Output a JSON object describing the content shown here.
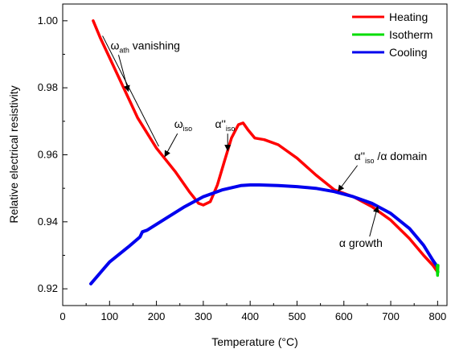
{
  "chart_data": {
    "type": "line",
    "title": "",
    "xlabel": "Temperature (°C)",
    "ylabel": "Relative electrical resistivity",
    "xlim": [
      0,
      820
    ],
    "ylim": [
      0.915,
      1.005
    ],
    "xticks": [
      "0",
      "100",
      "200",
      "300",
      "400",
      "500",
      "600",
      "700",
      "800"
    ],
    "yticks": [
      "0.92",
      "0.94",
      "0.96",
      "0.98",
      "1.00"
    ],
    "grid": false,
    "legend_position": "top-right",
    "series": [
      {
        "name": "Heating",
        "color": "#ff0000",
        "x": [
          65,
          80,
          100,
          130,
          160,
          200,
          240,
          270,
          290,
          300,
          315,
          330,
          345,
          360,
          375,
          385,
          395,
          410,
          430,
          460,
          500,
          540,
          580,
          620,
          660,
          700,
          740,
          770,
          790,
          800
        ],
        "y": [
          1.0,
          0.995,
          0.989,
          0.98,
          0.971,
          0.962,
          0.955,
          0.949,
          0.9455,
          0.945,
          0.946,
          0.951,
          0.958,
          0.965,
          0.969,
          0.9695,
          0.9675,
          0.965,
          0.9645,
          0.963,
          0.959,
          0.954,
          0.9495,
          0.9475,
          0.9445,
          0.9405,
          0.935,
          0.93,
          0.927,
          0.925
        ]
      },
      {
        "name": "Isotherm",
        "color": "#00dd00",
        "x": [
          799,
          800,
          801,
          800,
          799,
          801,
          800
        ],
        "y": [
          0.927,
          0.925,
          0.927,
          0.924,
          0.926,
          0.925,
          0.926
        ]
      },
      {
        "name": "Cooling",
        "color": "#0000ee",
        "x": [
          800,
          790,
          770,
          740,
          700,
          660,
          620,
          580,
          540,
          500,
          460,
          420,
          400,
          380,
          340,
          300,
          260,
          220,
          180,
          170,
          165,
          140,
          100,
          60
        ],
        "y": [
          0.9265,
          0.9285,
          0.933,
          0.938,
          0.9425,
          0.9455,
          0.9475,
          0.949,
          0.95,
          0.9505,
          0.9508,
          0.951,
          0.951,
          0.9508,
          0.9495,
          0.9475,
          0.9445,
          0.941,
          0.9375,
          0.937,
          0.9355,
          0.9325,
          0.928,
          0.9215
        ]
      }
    ],
    "annotations": [
      {
        "main": "ω",
        "sub": "ath",
        "suffix": " vanishing",
        "text_x": 102,
        "text_y": 0.9915,
        "arrow_to": [
          140,
          0.979
        ]
      },
      {
        "main": "ω",
        "sub": "iso",
        "suffix": "",
        "text_x": 238,
        "text_y": 0.968,
        "arrow_to": [
          218,
          0.9595
        ]
      },
      {
        "main": "α''",
        "sub": "iso",
        "suffix": "",
        "text_x": 325,
        "text_y": 0.968,
        "arrow_to": [
          352,
          0.9613
        ]
      },
      {
        "main": "α''",
        "sub": "iso",
        "suffix": " /α domain",
        "text_x": 622,
        "text_y": 0.9585,
        "arrow_to": [
          588,
          0.9492
        ]
      },
      {
        "main": "α growth",
        "sub": "",
        "suffix": "",
        "text_x": 590,
        "text_y": 0.9325,
        "arrow_to": [
          672,
          0.9445
        ]
      }
    ],
    "guide_line": {
      "x": [
        85,
        205
      ],
      "y": [
        0.9955,
        0.9625
      ]
    }
  }
}
